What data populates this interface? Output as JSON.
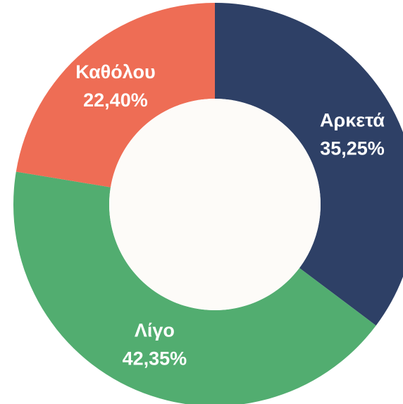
{
  "chart_data": {
    "type": "donut",
    "categories": [
      "Αρκετά",
      "Λίγο",
      "Καθόλου"
    ],
    "values": [
      35.25,
      42.35,
      22.4
    ],
    "value_labels": [
      "35,25%",
      "42,35%",
      "22,40%"
    ],
    "colors": [
      "#2e4066",
      "#52ad70",
      "#ee6d55"
    ]
  }
}
